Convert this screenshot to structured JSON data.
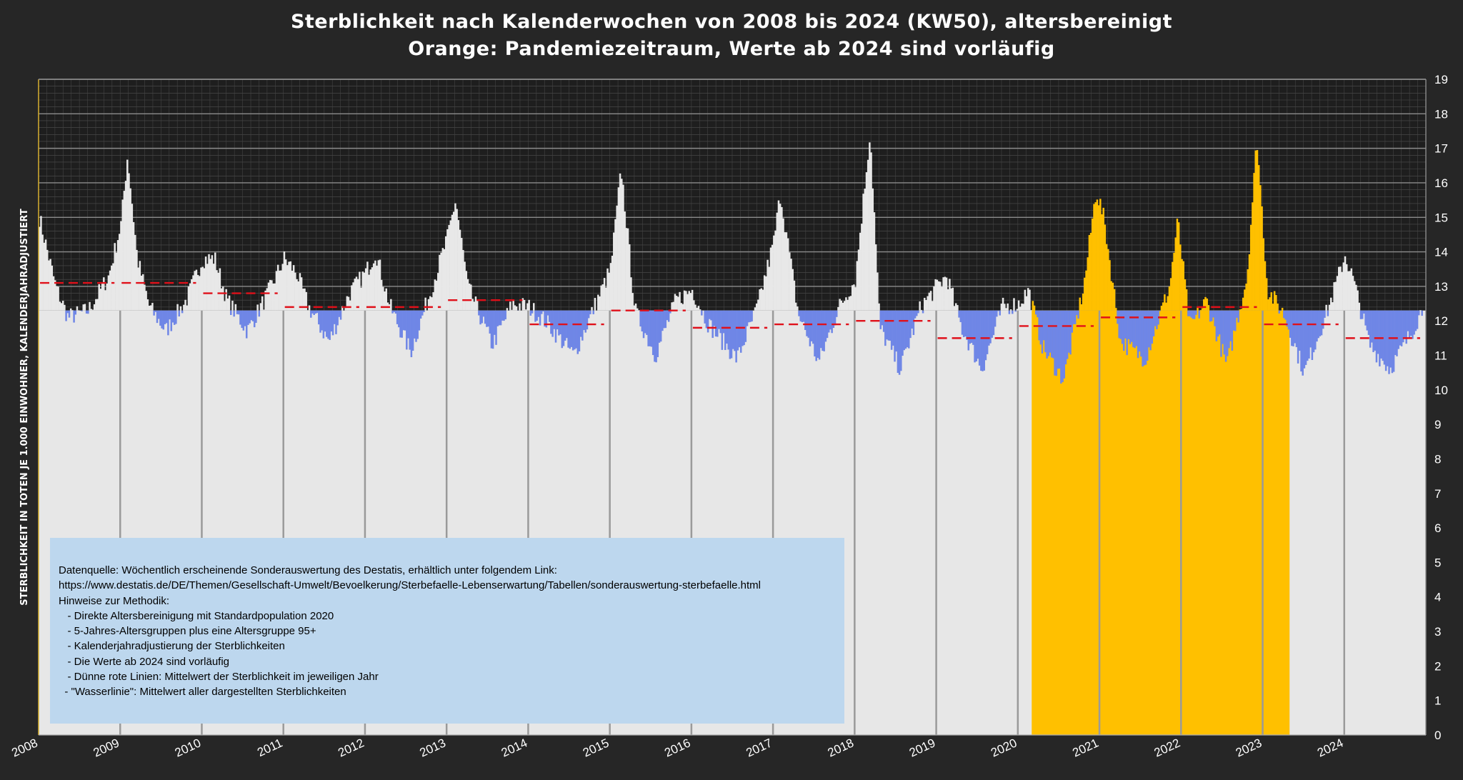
{
  "title_line1": "Sterblichkeit nach Kalenderwochen von 2008 bis 2024 (KW50), altersbereinigt",
  "title_line2": "Orange: Pandemiezeitraum, Werte ab 2024 sind vorläufig",
  "notes": [
    "Datenquelle: Wöchentlich erscheinende Sonderauswertung des Destatis, erhältlich unter folgendem Link:",
    "https://www.destatis.de/DE/Themen/Gesellschaft-Umwelt/Bevoelkerung/Sterbefaelle-Lebenserwartung/Tabellen/sonderauswertung-sterbefaelle.html",
    "Hinweise zur Methodik:",
    "   - Direkte Altersbereinigung mit Standardpopulation 2020",
    "   - 5-Jahres-Altersgruppen plus eine Altersgruppe 95+",
    "   - Kalenderjahradjustierung der Sterblichkeiten",
    "   - Die Werte ab 2024 sind vorläufig",
    "   - Dünne rote Linien: Mittelwert der Sterblichkeit im jeweiligen Jahr",
    "  - \"Wasserlinie\": Mittelwert aller dargestellten Sterblichkeiten"
  ],
  "chart_data": {
    "type": "bar",
    "title": "Sterblichkeit nach Kalenderwochen von 2008 bis 2024 (KW50), altersbereinigt",
    "subtitle": "Orange: Pandemiezeitraum, Werte ab 2024 sind vorläufig",
    "ylabel": "STERBLICHKEIT IN TOTEN JE 1.000 EINWOHNER, KALENDERJAHRADJUSTIERT",
    "xlabel": "",
    "ylim": [
      0,
      19
    ],
    "yticks": [
      0,
      1,
      2,
      3,
      4,
      5,
      6,
      7,
      8,
      9,
      10,
      11,
      12,
      13,
      14,
      15,
      16,
      17,
      18,
      19
    ],
    "y_axis_side": "right",
    "x_tick_labels": [
      "2008",
      "2009",
      "2010",
      "2011",
      "2012",
      "2013",
      "2014",
      "2015",
      "2016",
      "2017",
      "2018",
      "2019",
      "2020",
      "2021",
      "2022",
      "2023",
      "2024"
    ],
    "water_line": 12.3,
    "pandemic_period": {
      "start": 2020.17,
      "end": 2023.33
    },
    "colors": {
      "above": "#e8e8e8",
      "below": "#6f86e6",
      "pandemic": "#ffc000",
      "mean_line": "#e0101a",
      "background_upper": "#1e1e1e"
    },
    "weekly_mortality_anchors": [
      [
        2008.0,
        15.0
      ],
      [
        2008.1,
        14.0
      ],
      [
        2008.2,
        13.0
      ],
      [
        2008.35,
        12.1
      ],
      [
        2008.6,
        12.3
      ],
      [
        2008.85,
        13.3
      ],
      [
        2009.0,
        14.8
      ],
      [
        2009.08,
        16.8
      ],
      [
        2009.2,
        13.8
      ],
      [
        2009.35,
        12.4
      ],
      [
        2009.55,
        11.7
      ],
      [
        2009.8,
        12.6
      ],
      [
        2010.0,
        13.8
      ],
      [
        2010.15,
        13.8
      ],
      [
        2010.3,
        12.6
      ],
      [
        2010.55,
        11.7
      ],
      [
        2010.8,
        12.8
      ],
      [
        2011.0,
        13.8
      ],
      [
        2011.15,
        13.4
      ],
      [
        2011.3,
        12.4
      ],
      [
        2011.55,
        11.4
      ],
      [
        2011.8,
        12.8
      ],
      [
        2012.0,
        13.4
      ],
      [
        2012.12,
        14.0
      ],
      [
        2012.3,
        12.4
      ],
      [
        2012.55,
        11.1
      ],
      [
        2012.8,
        12.9
      ],
      [
        2013.0,
        14.4
      ],
      [
        2013.1,
        15.5
      ],
      [
        2013.25,
        13.0
      ],
      [
        2013.55,
        11.3
      ],
      [
        2013.8,
        12.5
      ],
      [
        2014.0,
        12.4
      ],
      [
        2014.2,
        12.0
      ],
      [
        2014.55,
        11.0
      ],
      [
        2014.8,
        12.4
      ],
      [
        2015.0,
        13.5
      ],
      [
        2015.13,
        16.4
      ],
      [
        2015.3,
        12.3
      ],
      [
        2015.55,
        11.0
      ],
      [
        2015.8,
        12.6
      ],
      [
        2016.0,
        12.9
      ],
      [
        2016.2,
        11.9
      ],
      [
        2016.55,
        10.9
      ],
      [
        2016.8,
        12.4
      ],
      [
        2017.0,
        14.3
      ],
      [
        2017.08,
        15.7
      ],
      [
        2017.3,
        12.2
      ],
      [
        2017.55,
        10.8
      ],
      [
        2017.8,
        12.4
      ],
      [
        2018.0,
        13.2
      ],
      [
        2018.18,
        17.5
      ],
      [
        2018.3,
        11.8
      ],
      [
        2018.55,
        10.6
      ],
      [
        2018.8,
        12.4
      ],
      [
        2019.0,
        13.0
      ],
      [
        2019.12,
        13.3
      ],
      [
        2019.3,
        11.8
      ],
      [
        2019.55,
        10.6
      ],
      [
        2019.8,
        12.4
      ],
      [
        2020.0,
        12.5
      ],
      [
        2020.12,
        12.9
      ],
      [
        2020.3,
        11.2
      ],
      [
        2020.55,
        10.3
      ],
      [
        2020.8,
        13.0
      ],
      [
        2020.95,
        15.8
      ],
      [
        2021.05,
        14.9
      ],
      [
        2021.25,
        11.4
      ],
      [
        2021.55,
        10.9
      ],
      [
        2021.85,
        13.0
      ],
      [
        2021.95,
        14.9
      ],
      [
        2022.1,
        11.8
      ],
      [
        2022.3,
        12.6
      ],
      [
        2022.55,
        10.7
      ],
      [
        2022.8,
        13.3
      ],
      [
        2022.92,
        17.3
      ],
      [
        2023.05,
        12.9
      ],
      [
        2023.25,
        12.2
      ],
      [
        2023.5,
        10.5
      ],
      [
        2023.8,
        12.4
      ],
      [
        2024.0,
        13.9
      ],
      [
        2024.1,
        13.2
      ],
      [
        2024.3,
        11.3
      ],
      [
        2024.55,
        10.6
      ],
      [
        2024.8,
        11.6
      ],
      [
        2024.96,
        12.4
      ]
    ],
    "yearly_means": [
      {
        "year": "2008",
        "value": 13.1
      },
      {
        "year": "2009",
        "value": 13.1
      },
      {
        "year": "2010",
        "value": 12.8
      },
      {
        "year": "2011",
        "value": 12.4
      },
      {
        "year": "2012",
        "value": 12.4
      },
      {
        "year": "2013",
        "value": 12.6
      },
      {
        "year": "2014",
        "value": 11.9
      },
      {
        "year": "2015",
        "value": 12.3
      },
      {
        "year": "2016",
        "value": 11.8
      },
      {
        "year": "2017",
        "value": 11.9
      },
      {
        "year": "2018",
        "value": 12.0
      },
      {
        "year": "2019",
        "value": 11.5
      },
      {
        "year": "2020",
        "value": 11.85
      },
      {
        "year": "2021",
        "value": 12.1
      },
      {
        "year": "2022",
        "value": 12.4
      },
      {
        "year": "2023",
        "value": 11.9
      },
      {
        "year": "2024",
        "value": 11.5
      }
    ]
  }
}
